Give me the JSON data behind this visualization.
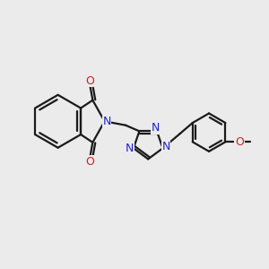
{
  "background_color": "#ebebeb",
  "bond_color": "#1a1a1a",
  "nitrogen_color": "#2020cc",
  "oxygen_color": "#cc2020",
  "bond_width": 1.6,
  "figsize": [
    3.0,
    3.0
  ],
  "dpi": 100,
  "xlim": [
    0,
    10
  ],
  "ylim": [
    0,
    10
  ]
}
